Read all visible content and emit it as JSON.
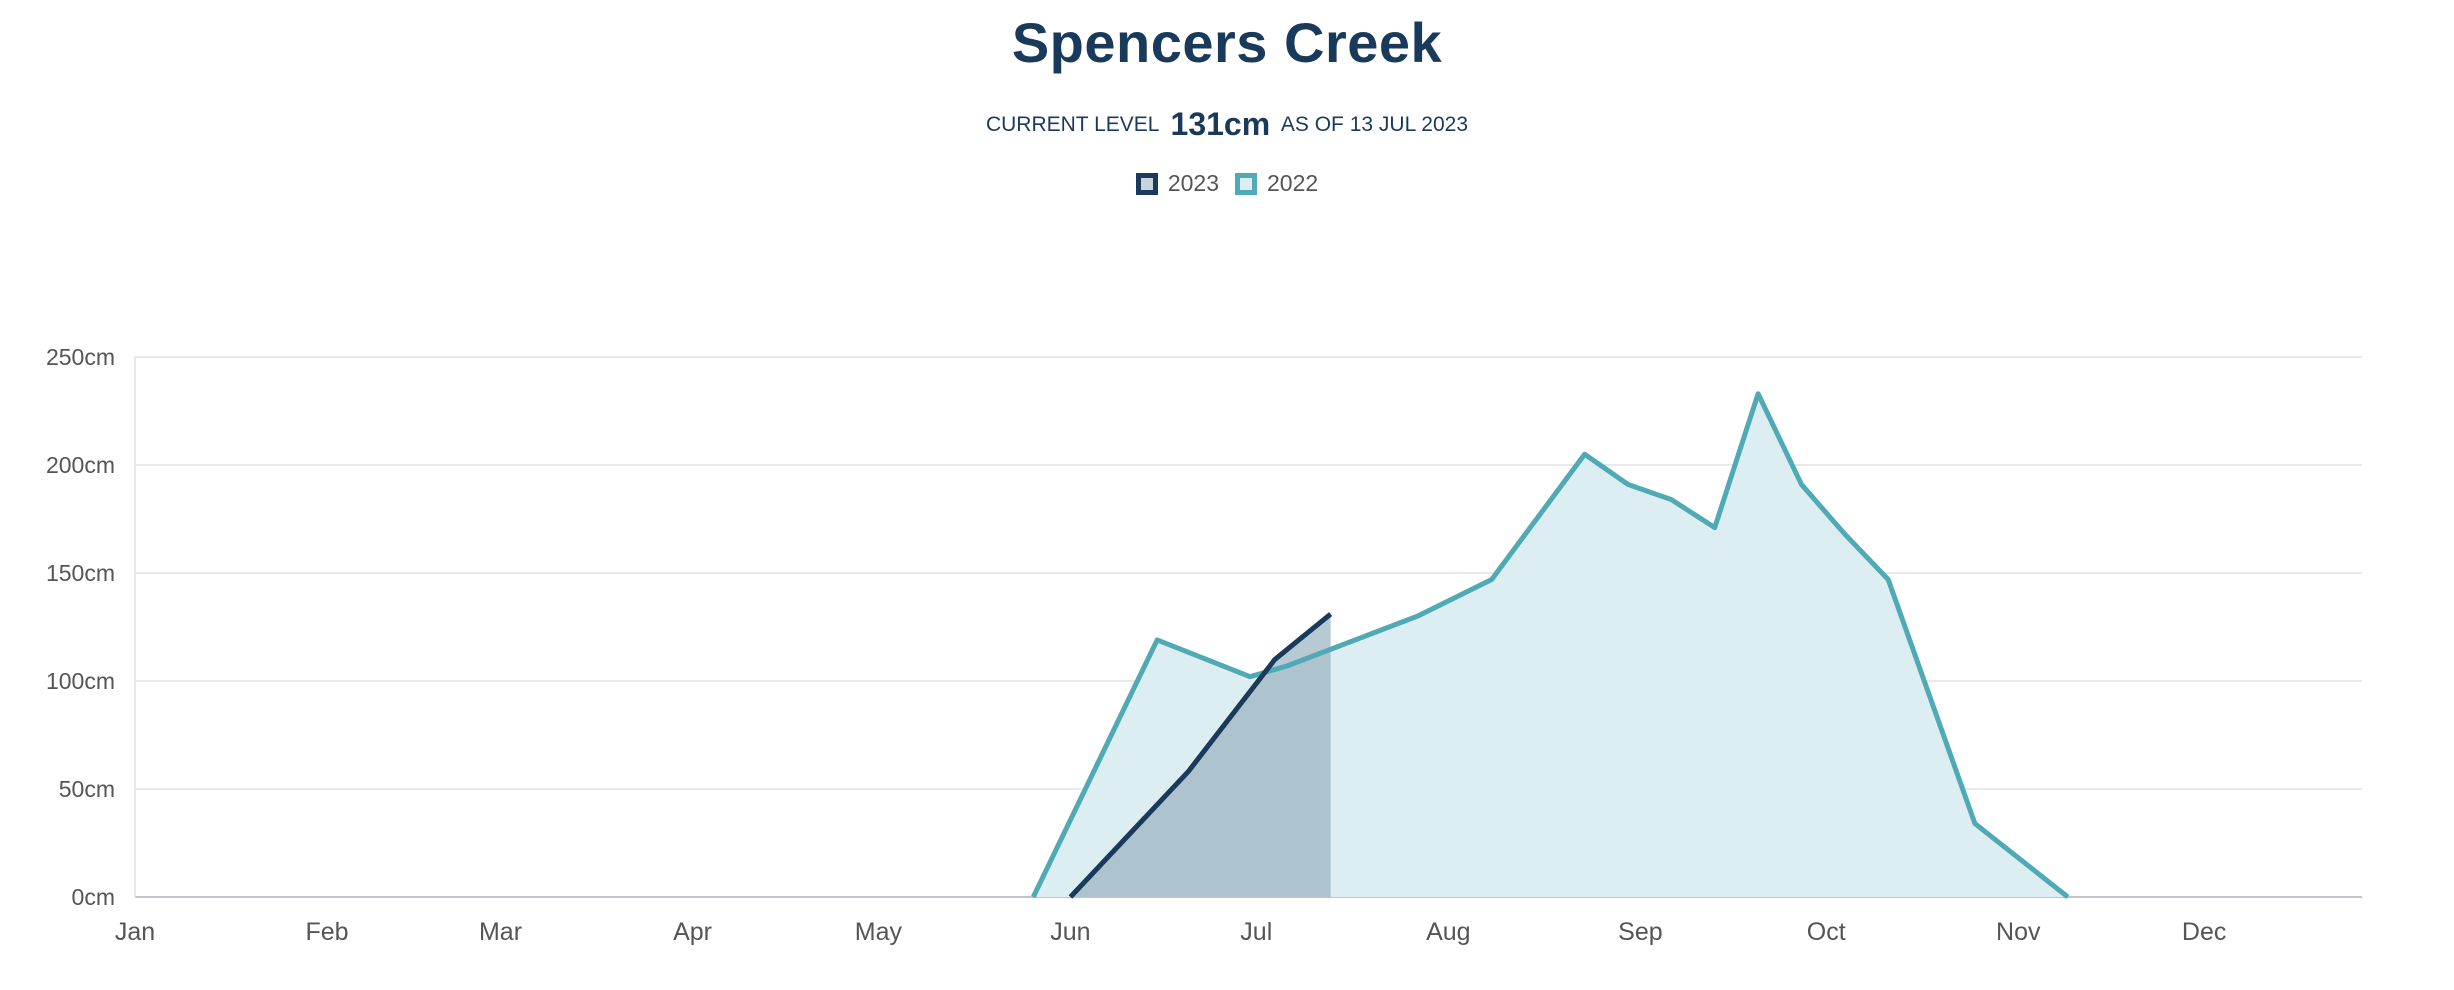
{
  "chart_data": {
    "type": "area",
    "title": "Spencers Creek",
    "current_level": {
      "label_prefix": "CURRENT LEVEL",
      "value": "131cm",
      "label_suffix": "AS OF 13 JUL 2023"
    },
    "x_axis": {
      "type": "month",
      "tick_labels": [
        "Jan",
        "Feb",
        "Mar",
        "Apr",
        "May",
        "Jun",
        "Jul",
        "Aug",
        "Sep",
        "Oct",
        "Nov",
        "Dec"
      ]
    },
    "y_axis": {
      "unit": "cm",
      "ylim": [
        0,
        250
      ],
      "tick_values": [
        0,
        50,
        100,
        150,
        200,
        250
      ],
      "tick_labels": [
        "0cm",
        "50cm",
        "100cm",
        "150cm",
        "200cm",
        "250cm"
      ]
    },
    "grid": true,
    "legend_position": "top-center",
    "series": [
      {
        "name": "2023",
        "color": "#1a3a5c",
        "fill": "#9bb4c0",
        "points": [
          {
            "date": "2023-06-01",
            "value": 0
          },
          {
            "date": "2023-06-20",
            "value": 58
          },
          {
            "date": "2023-07-04",
            "value": 110
          },
          {
            "date": "2023-07-13",
            "value": 131
          }
        ]
      },
      {
        "name": "2022",
        "color": "#4faab5",
        "fill": "#dceef1",
        "points": [
          {
            "date": "2022-05-26",
            "value": 0
          },
          {
            "date": "2022-06-15",
            "value": 119
          },
          {
            "date": "2022-06-30",
            "value": 102
          },
          {
            "date": "2022-07-06",
            "value": 107
          },
          {
            "date": "2022-07-27",
            "value": 130
          },
          {
            "date": "2022-08-08",
            "value": 147
          },
          {
            "date": "2022-08-23",
            "value": 205
          },
          {
            "date": "2022-08-30",
            "value": 191
          },
          {
            "date": "2022-09-06",
            "value": 184
          },
          {
            "date": "2022-09-13",
            "value": 171
          },
          {
            "date": "2022-09-20",
            "value": 233
          },
          {
            "date": "2022-09-27",
            "value": 191
          },
          {
            "date": "2022-10-04",
            "value": 168
          },
          {
            "date": "2022-10-11",
            "value": 147
          },
          {
            "date": "2022-10-25",
            "value": 34
          },
          {
            "date": "2022-11-09",
            "value": 0
          }
        ]
      }
    ]
  }
}
